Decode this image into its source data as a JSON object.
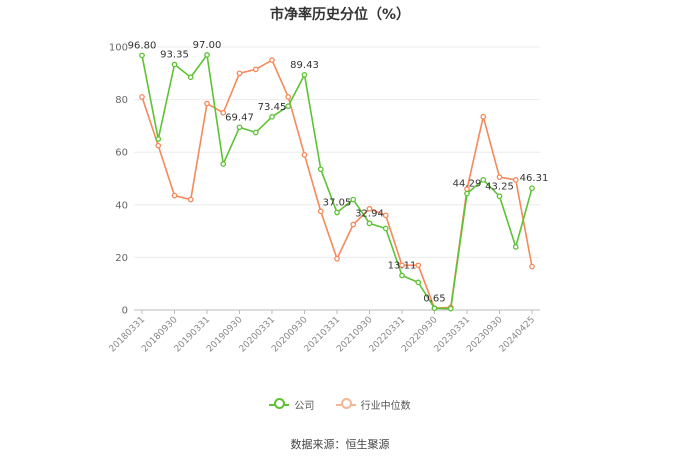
{
  "chart_data": {
    "type": "line",
    "title": "市净率历史分位（%）",
    "ylim": [
      0,
      100
    ],
    "y_ticks": [
      0,
      20,
      40,
      60,
      80,
      100
    ],
    "grid": "horizontal",
    "legend_position": "bottom-center",
    "x_tick_labels": [
      "20180331",
      "20180930",
      "20190331",
      "20190930",
      "20200331",
      "20200930",
      "20210331",
      "20210930",
      "20220331",
      "20220930",
      "20230331",
      "20230930",
      "20240425"
    ],
    "x_tick_indices": [
      0,
      2,
      4,
      6,
      8,
      10,
      12,
      14,
      16,
      18,
      20,
      22,
      24
    ],
    "series": [
      {
        "name": "公司",
        "color": "#5dc334",
        "values": [
          96.8,
          65,
          93.35,
          88.5,
          97.0,
          55.5,
          69.47,
          67.5,
          73.45,
          77.5,
          89.43,
          53.5,
          37.05,
          42,
          32.94,
          31,
          13.11,
          10.5,
          0.65,
          0.5,
          44.29,
          49.5,
          43.25,
          24,
          46.31
        ]
      },
      {
        "name": "行业中位数",
        "color": "#f5895a",
        "values": [
          81,
          62.5,
          43.5,
          42,
          78.5,
          75,
          90,
          91.5,
          95,
          81,
          59,
          37.5,
          19.5,
          32.5,
          38.5,
          36,
          17,
          17,
          0.7,
          1,
          46,
          73.5,
          50.5,
          49.5,
          16.5
        ]
      }
    ],
    "annotations": [
      {
        "index": 0,
        "text": "96.80"
      },
      {
        "index": 2,
        "text": "93.35"
      },
      {
        "index": 4,
        "text": "97.00"
      },
      {
        "index": 6,
        "text": "69.47"
      },
      {
        "index": 8,
        "text": "73.45"
      },
      {
        "index": 10,
        "text": "89.43"
      },
      {
        "index": 12,
        "text": "37.05"
      },
      {
        "index": 14,
        "text": "32.94"
      },
      {
        "index": 16,
        "text": "13.11"
      },
      {
        "index": 18,
        "text": "0.65"
      },
      {
        "index": 20,
        "text": "44.29"
      },
      {
        "index": 22,
        "text": "43.25"
      },
      {
        "index": 24,
        "text": "46.31"
      }
    ]
  },
  "legend": {
    "company_label": "公司",
    "industry_label": "行业中位数"
  },
  "source_note": "数据来源：恒生聚源"
}
